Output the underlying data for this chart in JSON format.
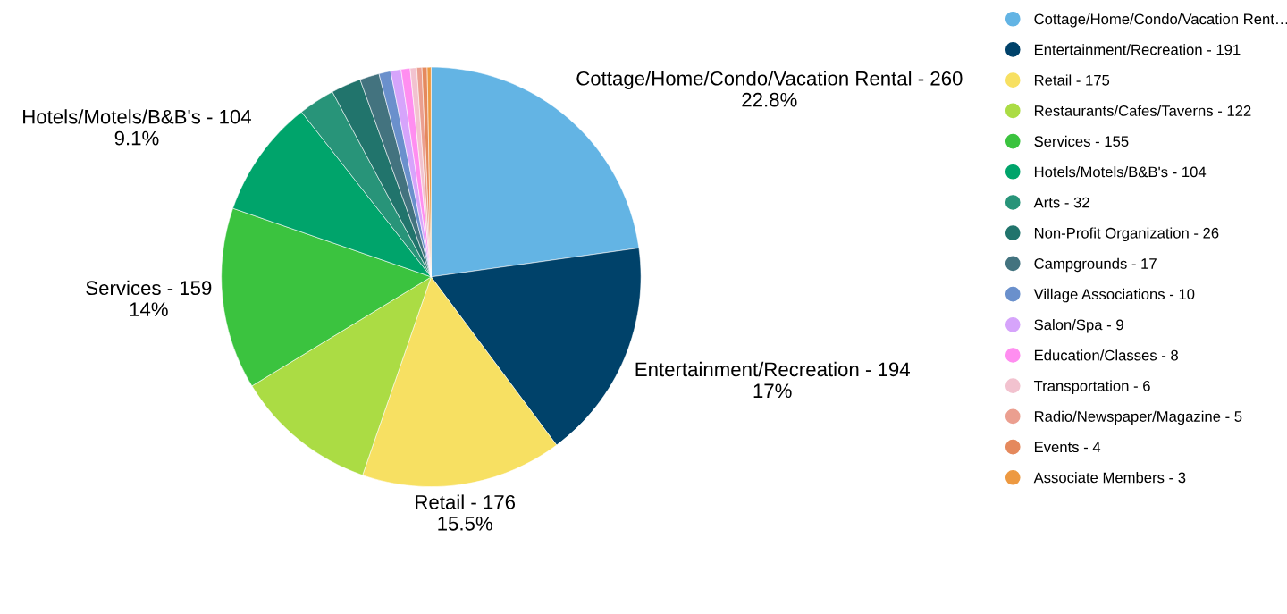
{
  "chart_data": {
    "type": "pie",
    "categories": [
      "Cottage/Home/Condo/Vacation Rent…",
      "Entertainment/Recreation - 191",
      "Retail - 175",
      "Restaurants/Cafes/Taverns - 122",
      "Services - 155",
      "Hotels/Motels/B&B's - 104",
      "Arts - 32",
      "Non-Profit Organization - 26",
      "Campgrounds - 17",
      "Village Associations - 10",
      "Salon/Spa - 9",
      "Education/Classes - 8",
      "Transportation - 6",
      "Radio/Newspaper/Magazine - 5",
      "Events - 4",
      "Associate Members - 3"
    ],
    "values": [
      22.8,
      17,
      15.5,
      11.0,
      14,
      9.1,
      2.8,
      2.3,
      1.5,
      0.9,
      0.8,
      0.7,
      0.5,
      0.4,
      0.4,
      0.3
    ],
    "value_labels": [
      "Cottage/Home/Condo/Vacation Rental - 260\n22.8%",
      "Entertainment/Recreation - 194\n17%",
      "Retail - 176\n15.5%",
      null,
      "Services - 159\n14%",
      "Hotels/Motels/B&B's - 104\n9.1%",
      null,
      null,
      null,
      null,
      null,
      null,
      null,
      null,
      null,
      null
    ],
    "colors": [
      "#63b4e4",
      "#00426a",
      "#f7e062",
      "#abdc44",
      "#3bc33f",
      "#00a46b",
      "#289479",
      "#21746c",
      "#43737f",
      "#6a90cc",
      "#d6a4fb",
      "#ff8ef0",
      "#f2c2cf",
      "#eb9f90",
      "#e5895d",
      "#ed9941"
    ],
    "legend": "right"
  }
}
